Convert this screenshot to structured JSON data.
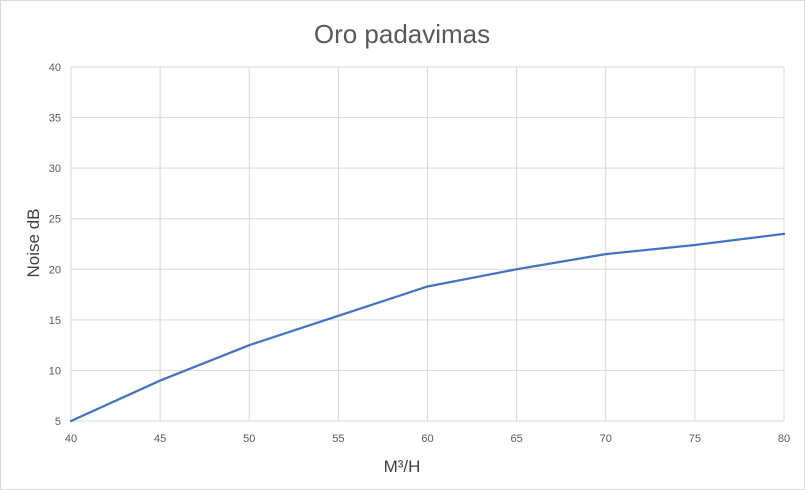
{
  "chart_data": {
    "type": "line",
    "title": "Oro padavimas",
    "xlabel": "M³/H",
    "ylabel": "Noise dB",
    "x": [
      40,
      45,
      50,
      55,
      60,
      65,
      70,
      75,
      80
    ],
    "series": [
      {
        "values": [
          5,
          9,
          12.5,
          15.4,
          18.3,
          20,
          21.5,
          22.4,
          23.5
        ]
      }
    ],
    "xlim": [
      40,
      80
    ],
    "ylim": [
      5,
      40
    ],
    "xticks": [
      "40",
      "45",
      "50",
      "55",
      "60",
      "65",
      "70",
      "75",
      "80"
    ],
    "yticks": [
      "5",
      "10",
      "15",
      "20",
      "25",
      "30",
      "35",
      "40"
    ],
    "grid": true,
    "legend": "none",
    "colors": {
      "series": "#4472c4",
      "grid": "#d9d9d9",
      "text": "#595959"
    }
  }
}
